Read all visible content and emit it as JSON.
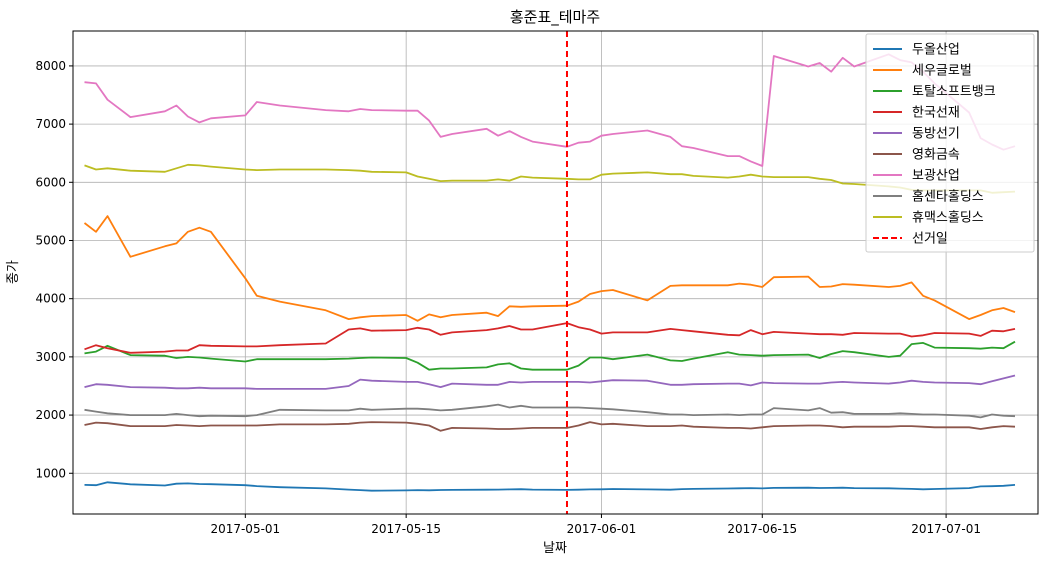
{
  "chart_data": {
    "type": "line",
    "title": "홍준표_테마주",
    "xlabel": "날짜",
    "ylabel": "종가",
    "ylim": [
      300,
      8600
    ],
    "xlim": [
      "2017-04-16",
      "2017-07-09"
    ],
    "grid": true,
    "legend_position": "top-right",
    "y_ticks": [
      1000,
      2000,
      3000,
      4000,
      5000,
      6000,
      7000,
      8000
    ],
    "x_ticks": [
      "2017-05-01",
      "2017-05-15",
      "2017-06-01",
      "2017-06-15",
      "2017-07-01"
    ],
    "dates": [
      "2017-04-17",
      "2017-04-18",
      "2017-04-19",
      "2017-04-21",
      "2017-04-24",
      "2017-04-25",
      "2017-04-26",
      "2017-04-27",
      "2017-04-28",
      "2017-05-01",
      "2017-05-02",
      "2017-05-04",
      "2017-05-08",
      "2017-05-10",
      "2017-05-11",
      "2017-05-12",
      "2017-05-15",
      "2017-05-16",
      "2017-05-17",
      "2017-05-18",
      "2017-05-19",
      "2017-05-22",
      "2017-05-23",
      "2017-05-24",
      "2017-05-25",
      "2017-05-26",
      "2017-05-29",
      "2017-05-30",
      "2017-05-31",
      "2017-06-01",
      "2017-06-02",
      "2017-06-05",
      "2017-06-07",
      "2017-06-08",
      "2017-06-09",
      "2017-06-12",
      "2017-06-13",
      "2017-06-14",
      "2017-06-15",
      "2017-06-16",
      "2017-06-19",
      "2017-06-20",
      "2017-06-21",
      "2017-06-22",
      "2017-06-23",
      "2017-06-26",
      "2017-06-27",
      "2017-06-28",
      "2017-06-29",
      "2017-06-30",
      "2017-07-03",
      "2017-07-04",
      "2017-07-05",
      "2017-07-06",
      "2017-07-07"
    ],
    "series": [
      {
        "name": "두올산업",
        "color": "#1f77b4",
        "values": [
          800,
          795,
          845,
          810,
          790,
          820,
          825,
          815,
          812,
          795,
          780,
          760,
          740,
          720,
          710,
          700,
          705,
          710,
          708,
          712,
          714,
          718,
          720,
          722,
          726,
          720,
          715,
          718,
          722,
          725,
          730,
          722,
          718,
          728,
          732,
          738,
          742,
          745,
          740,
          748,
          752,
          746,
          748,
          752,
          745,
          742,
          736,
          732,
          725,
          730,
          745,
          775,
          778,
          785,
          800
        ]
      },
      {
        "name": "세우글로벌",
        "color": "#ff7f0e",
        "values": [
          5300,
          5150,
          5420,
          4720,
          4900,
          4950,
          5150,
          5220,
          5150,
          4350,
          4050,
          3950,
          3800,
          3650,
          3680,
          3700,
          3720,
          3620,
          3730,
          3680,
          3720,
          3760,
          3700,
          3870,
          3860,
          3870,
          3880,
          3950,
          4080,
          4130,
          4150,
          3970,
          4220,
          4230,
          4230,
          4230,
          4260,
          4240,
          4200,
          4370,
          4380,
          4200,
          4210,
          4250,
          4240,
          4200,
          4220,
          4280,
          4050,
          3970,
          3650,
          3720,
          3800,
          3840,
          3770
        ]
      },
      {
        "name": "토탈소프트뱅크",
        "color": "#2ca02c",
        "values": [
          3060,
          3090,
          3190,
          3030,
          3020,
          2980,
          3000,
          2990,
          2970,
          2920,
          2960,
          2960,
          2960,
          2970,
          2980,
          2990,
          2980,
          2900,
          2780,
          2800,
          2800,
          2820,
          2870,
          2890,
          2800,
          2780,
          2780,
          2850,
          2990,
          2990,
          2960,
          3040,
          2940,
          2930,
          2970,
          3080,
          3040,
          3030,
          3020,
          3030,
          3040,
          2980,
          3050,
          3100,
          3080,
          3000,
          3020,
          3220,
          3240,
          3160,
          3150,
          3140,
          3160,
          3150,
          3260
        ]
      },
      {
        "name": "한국선재",
        "color": "#d62728",
        "values": [
          3130,
          3200,
          3150,
          3070,
          3090,
          3110,
          3110,
          3200,
          3190,
          3180,
          3180,
          3200,
          3230,
          3470,
          3490,
          3450,
          3460,
          3500,
          3470,
          3380,
          3420,
          3460,
          3490,
          3530,
          3470,
          3470,
          3580,
          3510,
          3470,
          3400,
          3420,
          3420,
          3480,
          3460,
          3440,
          3380,
          3370,
          3460,
          3390,
          3430,
          3400,
          3390,
          3390,
          3380,
          3410,
          3400,
          3400,
          3350,
          3370,
          3410,
          3400,
          3360,
          3450,
          3440,
          3480
        ]
      },
      {
        "name": "동방선기",
        "color": "#9467bd",
        "values": [
          2480,
          2530,
          2520,
          2480,
          2470,
          2460,
          2460,
          2470,
          2460,
          2460,
          2450,
          2450,
          2450,
          2500,
          2610,
          2590,
          2570,
          2570,
          2530,
          2480,
          2540,
          2520,
          2520,
          2570,
          2560,
          2570,
          2570,
          2570,
          2560,
          2580,
          2600,
          2590,
          2520,
          2520,
          2530,
          2540,
          2540,
          2510,
          2560,
          2550,
          2540,
          2540,
          2560,
          2570,
          2560,
          2540,
          2560,
          2590,
          2570,
          2560,
          2550,
          2530,
          2580,
          2630,
          2680
        ]
      },
      {
        "name": "영화금속",
        "color": "#8c564b",
        "values": [
          1830,
          1870,
          1860,
          1810,
          1810,
          1830,
          1820,
          1810,
          1820,
          1820,
          1820,
          1840,
          1840,
          1850,
          1870,
          1880,
          1870,
          1850,
          1820,
          1730,
          1780,
          1770,
          1760,
          1760,
          1770,
          1780,
          1780,
          1820,
          1880,
          1840,
          1850,
          1810,
          1810,
          1820,
          1800,
          1780,
          1780,
          1770,
          1790,
          1810,
          1820,
          1820,
          1810,
          1790,
          1800,
          1800,
          1810,
          1810,
          1800,
          1790,
          1790,
          1760,
          1790,
          1810,
          1800
        ]
      },
      {
        "name": "보광산업",
        "color": "#e377c2",
        "values": [
          7720,
          7700,
          7420,
          7120,
          7220,
          7320,
          7130,
          7030,
          7100,
          7150,
          7380,
          7320,
          7240,
          7220,
          7260,
          7240,
          7230,
          7230,
          7060,
          6780,
          6830,
          6920,
          6800,
          6880,
          6780,
          6700,
          6610,
          6680,
          6700,
          6800,
          6830,
          6890,
          6780,
          6620,
          6590,
          6450,
          6450,
          6360,
          6280,
          8170,
          7990,
          8050,
          7900,
          8140,
          7990,
          8200,
          8100,
          8060,
          7900,
          7700,
          7200,
          6760,
          6650,
          6560,
          6620
        ]
      },
      {
        "name": "홈센타홀딩스",
        "color": "#7f7f7f",
        "values": [
          2090,
          2060,
          2030,
          2000,
          2000,
          2020,
          2000,
          1980,
          1990,
          1980,
          2000,
          2090,
          2080,
          2080,
          2110,
          2090,
          2110,
          2110,
          2100,
          2080,
          2090,
          2150,
          2180,
          2130,
          2160,
          2130,
          2130,
          2130,
          2120,
          2110,
          2100,
          2050,
          2010,
          2010,
          2000,
          2010,
          2000,
          2010,
          2010,
          2120,
          2080,
          2120,
          2040,
          2050,
          2020,
          2020,
          2030,
          2020,
          2010,
          2010,
          1990,
          1960,
          2010,
          1990,
          1980
        ]
      },
      {
        "name": "휴맥스홀딩스",
        "color": "#bcbd22",
        "values": [
          6290,
          6220,
          6240,
          6200,
          6180,
          6240,
          6300,
          6290,
          6270,
          6220,
          6210,
          6220,
          6220,
          6210,
          6200,
          6180,
          6170,
          6100,
          6060,
          6020,
          6030,
          6030,
          6050,
          6030,
          6100,
          6080,
          6060,
          6050,
          6050,
          6130,
          6150,
          6170,
          6140,
          6140,
          6110,
          6080,
          6100,
          6130,
          6100,
          6090,
          6090,
          6060,
          6040,
          5980,
          5970,
          5930,
          5910,
          5870,
          5860,
          5860,
          5860,
          5860,
          5820,
          5830,
          5840
        ]
      }
    ],
    "annotations": [
      {
        "type": "vline",
        "x": "2017-05-29",
        "label": "선거일",
        "color": "#ff0000",
        "style": "dashed"
      }
    ]
  }
}
